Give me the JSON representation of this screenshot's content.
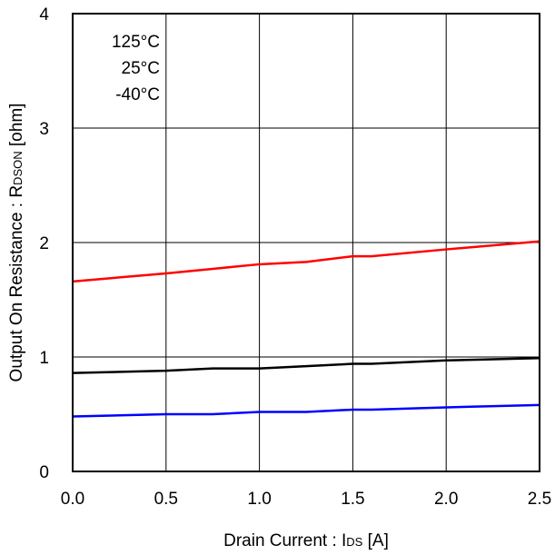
{
  "chart_data": {
    "type": "line",
    "xlabel": "Drain Current : IDS [A]",
    "xlabel_parts": {
      "main": "Drain Current : I",
      "sub": "DS",
      "tail": " [A]"
    },
    "ylabel": "Output On Resistance : RDSON [ohm]",
    "ylabel_parts": {
      "main": "Output On Resistance : R",
      "sub": "DSON",
      "tail": " [ohm]"
    },
    "xlim": [
      0,
      2.5
    ],
    "ylim": [
      0,
      4
    ],
    "x_ticks": [
      "0.0",
      "0.5",
      "1.0",
      "1.5",
      "2.0",
      "2.5"
    ],
    "x_tick_values": [
      0,
      0.5,
      1.0,
      1.5,
      2.0,
      2.5
    ],
    "y_ticks": [
      "0",
      "1",
      "2",
      "3",
      "4"
    ],
    "y_tick_values": [
      0,
      1,
      2,
      3,
      4
    ],
    "grid": true,
    "legend_position": "top-left",
    "series": [
      {
        "name": "125°C",
        "color": "#ff0000",
        "x": [
          0,
          0.5,
          0.75,
          1.0,
          1.25,
          1.5,
          1.6,
          2.0,
          2.5
        ],
        "y": [
          1.66,
          1.73,
          1.77,
          1.81,
          1.83,
          1.88,
          1.88,
          1.94,
          2.01
        ]
      },
      {
        "name": "25°C",
        "color": "#000000",
        "x": [
          0,
          0.5,
          0.75,
          1.0,
          1.25,
          1.5,
          1.6,
          2.0,
          2.5
        ],
        "y": [
          0.86,
          0.88,
          0.9,
          0.9,
          0.92,
          0.94,
          0.94,
          0.97,
          0.99
        ]
      },
      {
        "name": "-40°C",
        "color": "#0000ff",
        "x": [
          0,
          0.5,
          0.75,
          1.0,
          1.25,
          1.5,
          1.6,
          2.0,
          2.5
        ],
        "y": [
          0.48,
          0.5,
          0.5,
          0.52,
          0.52,
          0.54,
          0.54,
          0.56,
          0.58
        ]
      }
    ]
  }
}
